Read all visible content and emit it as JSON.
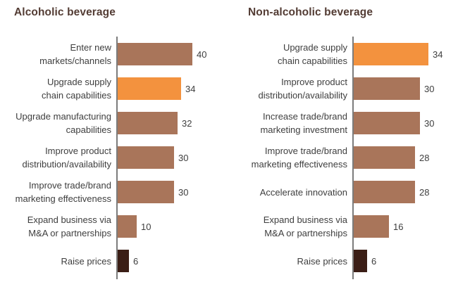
{
  "colors": {
    "brown": "#a9755a",
    "orange": "#f3923e",
    "dark": "#3b1e16",
    "axis": "#7c7c7c",
    "label_text": "#3e3e3e",
    "title_text": "#533c34",
    "background": "#ffffff"
  },
  "chart_data": [
    {
      "type": "bar",
      "orientation": "horizontal",
      "title": "Alcoholic beverage",
      "categories": [
        "Enter new markets/channels",
        "Upgrade supply chain capabilities",
        "Upgrade manufacturing capabilities",
        "Improve product distribution/availability",
        "Improve trade/brand marketing effectiveness",
        "Expand business via M&A or partnerships",
        "Raise prices"
      ],
      "category_display": [
        "Enter new\nmarkets/channels",
        "Upgrade supply\nchain capabilities",
        "Upgrade manufacturing\ncapabilities",
        "Improve product\ndistribution/availability",
        "Improve trade/brand\nmarketing effectiveness",
        "Expand business via\nM&A or partnerships",
        "Raise prices"
      ],
      "values": [
        40,
        34,
        32,
        30,
        30,
        10,
        6
      ],
      "bar_colors": [
        "brown",
        "orange",
        "brown",
        "brown",
        "brown",
        "brown",
        "dark"
      ],
      "xlim": [
        0,
        40
      ],
      "grid": false,
      "legend": false,
      "value_labels_shown": true
    },
    {
      "type": "bar",
      "orientation": "horizontal",
      "title": "Non-alcoholic beverage",
      "categories": [
        "Upgrade supply chain capabilities",
        "Improve product distribution/availability",
        "Increase trade/brand marketing investment",
        "Improve trade/brand marketing effectiveness",
        "Accelerate innovation",
        "Expand business via M&A or partnerships",
        "Raise prices"
      ],
      "category_display": [
        "Upgrade supply\nchain capabilities",
        "Improve product\ndistribution/availability",
        "Increase trade/brand\nmarketing investment",
        "Improve trade/brand\nmarketing effectiveness",
        "Accelerate innovation",
        "Expand business via\nM&A or partnerships",
        "Raise prices"
      ],
      "values": [
        34,
        30,
        30,
        28,
        28,
        16,
        6
      ],
      "bar_colors": [
        "orange",
        "brown",
        "brown",
        "brown",
        "brown",
        "brown",
        "dark"
      ],
      "xlim": [
        0,
        34
      ],
      "grid": false,
      "legend": false,
      "value_labels_shown": true
    }
  ]
}
